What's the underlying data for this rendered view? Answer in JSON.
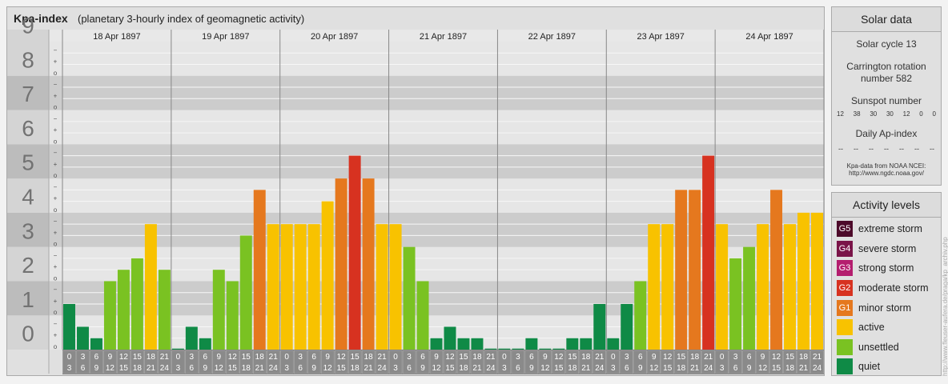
{
  "title": "Kpa-index",
  "subtitle": "(planetary 3-hourly index of geomagnetic activity)",
  "chart_data": {
    "type": "bar",
    "title": "Kpa-index",
    "subtitle": "(planetary 3-hourly index of geomagnetic activity)",
    "ylim": [
      0,
      9
    ],
    "y_ticks": [
      "0",
      "1",
      "2",
      "3",
      "4",
      "5",
      "6",
      "7",
      "8",
      "9"
    ],
    "sub_ticks": [
      "−",
      "+",
      "o"
    ],
    "days": [
      "18 Apr 1897",
      "19 Apr 1897",
      "20 Apr 1897",
      "21 Apr 1897",
      "22 Apr 1897",
      "23 Apr 1897",
      "24 Apr 1897"
    ],
    "hour_labels": [
      [
        "0",
        "3"
      ],
      [
        "3",
        "6"
      ],
      [
        "6",
        "9"
      ],
      [
        "9",
        "12"
      ],
      [
        "12",
        "15"
      ],
      [
        "15",
        "18"
      ],
      [
        "18",
        "21"
      ],
      [
        "21",
        "24"
      ]
    ],
    "values": [
      [
        1.333,
        0.667,
        0.333,
        2.0,
        2.333,
        2.667,
        3.667,
        2.333
      ],
      [
        0.0,
        0.667,
        0.333,
        2.333,
        2.0,
        3.333,
        4.667,
        3.667
      ],
      [
        3.667,
        3.667,
        3.667,
        4.333,
        5.0,
        5.667,
        5.0,
        3.667
      ],
      [
        3.667,
        3.0,
        2.0,
        0.333,
        0.667,
        0.333,
        0.333,
        0.0
      ],
      [
        0.0,
        0.0,
        0.333,
        0.0,
        0.0,
        0.333,
        0.333,
        1.333
      ],
      [
        0.333,
        1.333,
        2.0,
        3.667,
        3.667,
        4.667,
        4.667,
        5.667
      ],
      [
        3.667,
        2.667,
        3.0,
        3.667,
        4.667,
        3.667,
        4.0,
        4.0
      ]
    ],
    "grid": true
  },
  "solar": {
    "heading": "Solar data",
    "cycle": "Solar cycle 13",
    "carrington_1": "Carrington rotation",
    "carrington_2": "number 582",
    "sunspot_label": "Sunspot number",
    "sunspots": [
      "12",
      "38",
      "30",
      "30",
      "12",
      "0",
      "0"
    ],
    "ap_label": "Daily Ap-index",
    "ap_values": [
      "--",
      "--",
      "--",
      "--",
      "--",
      "--",
      "--"
    ],
    "source_1": "Kpa-data from NOAA NCEI:",
    "source_2": "http://www.ngdc.noaa.gov/"
  },
  "levels": {
    "heading": "Activity levels",
    "items": [
      {
        "code": "G5",
        "label": "extreme storm",
        "color": "#4d0a2a"
      },
      {
        "code": "G4",
        "label": "severe storm",
        "color": "#7a1448"
      },
      {
        "code": "G3",
        "label": "strong storm",
        "color": "#b41e6e"
      },
      {
        "code": "G2",
        "label": "moderate storm",
        "color": "#d73220"
      },
      {
        "code": "G1",
        "label": "minor storm",
        "color": "#e5781e"
      },
      {
        "code": "",
        "label": "active",
        "color": "#f8c200"
      },
      {
        "code": "",
        "label": "unsettled",
        "color": "#7ac222"
      },
      {
        "code": "",
        "label": "quiet",
        "color": "#0f8a46"
      }
    ]
  },
  "credit": "http://www.fleuser-aufera.de/praga/kp_archiv.php"
}
